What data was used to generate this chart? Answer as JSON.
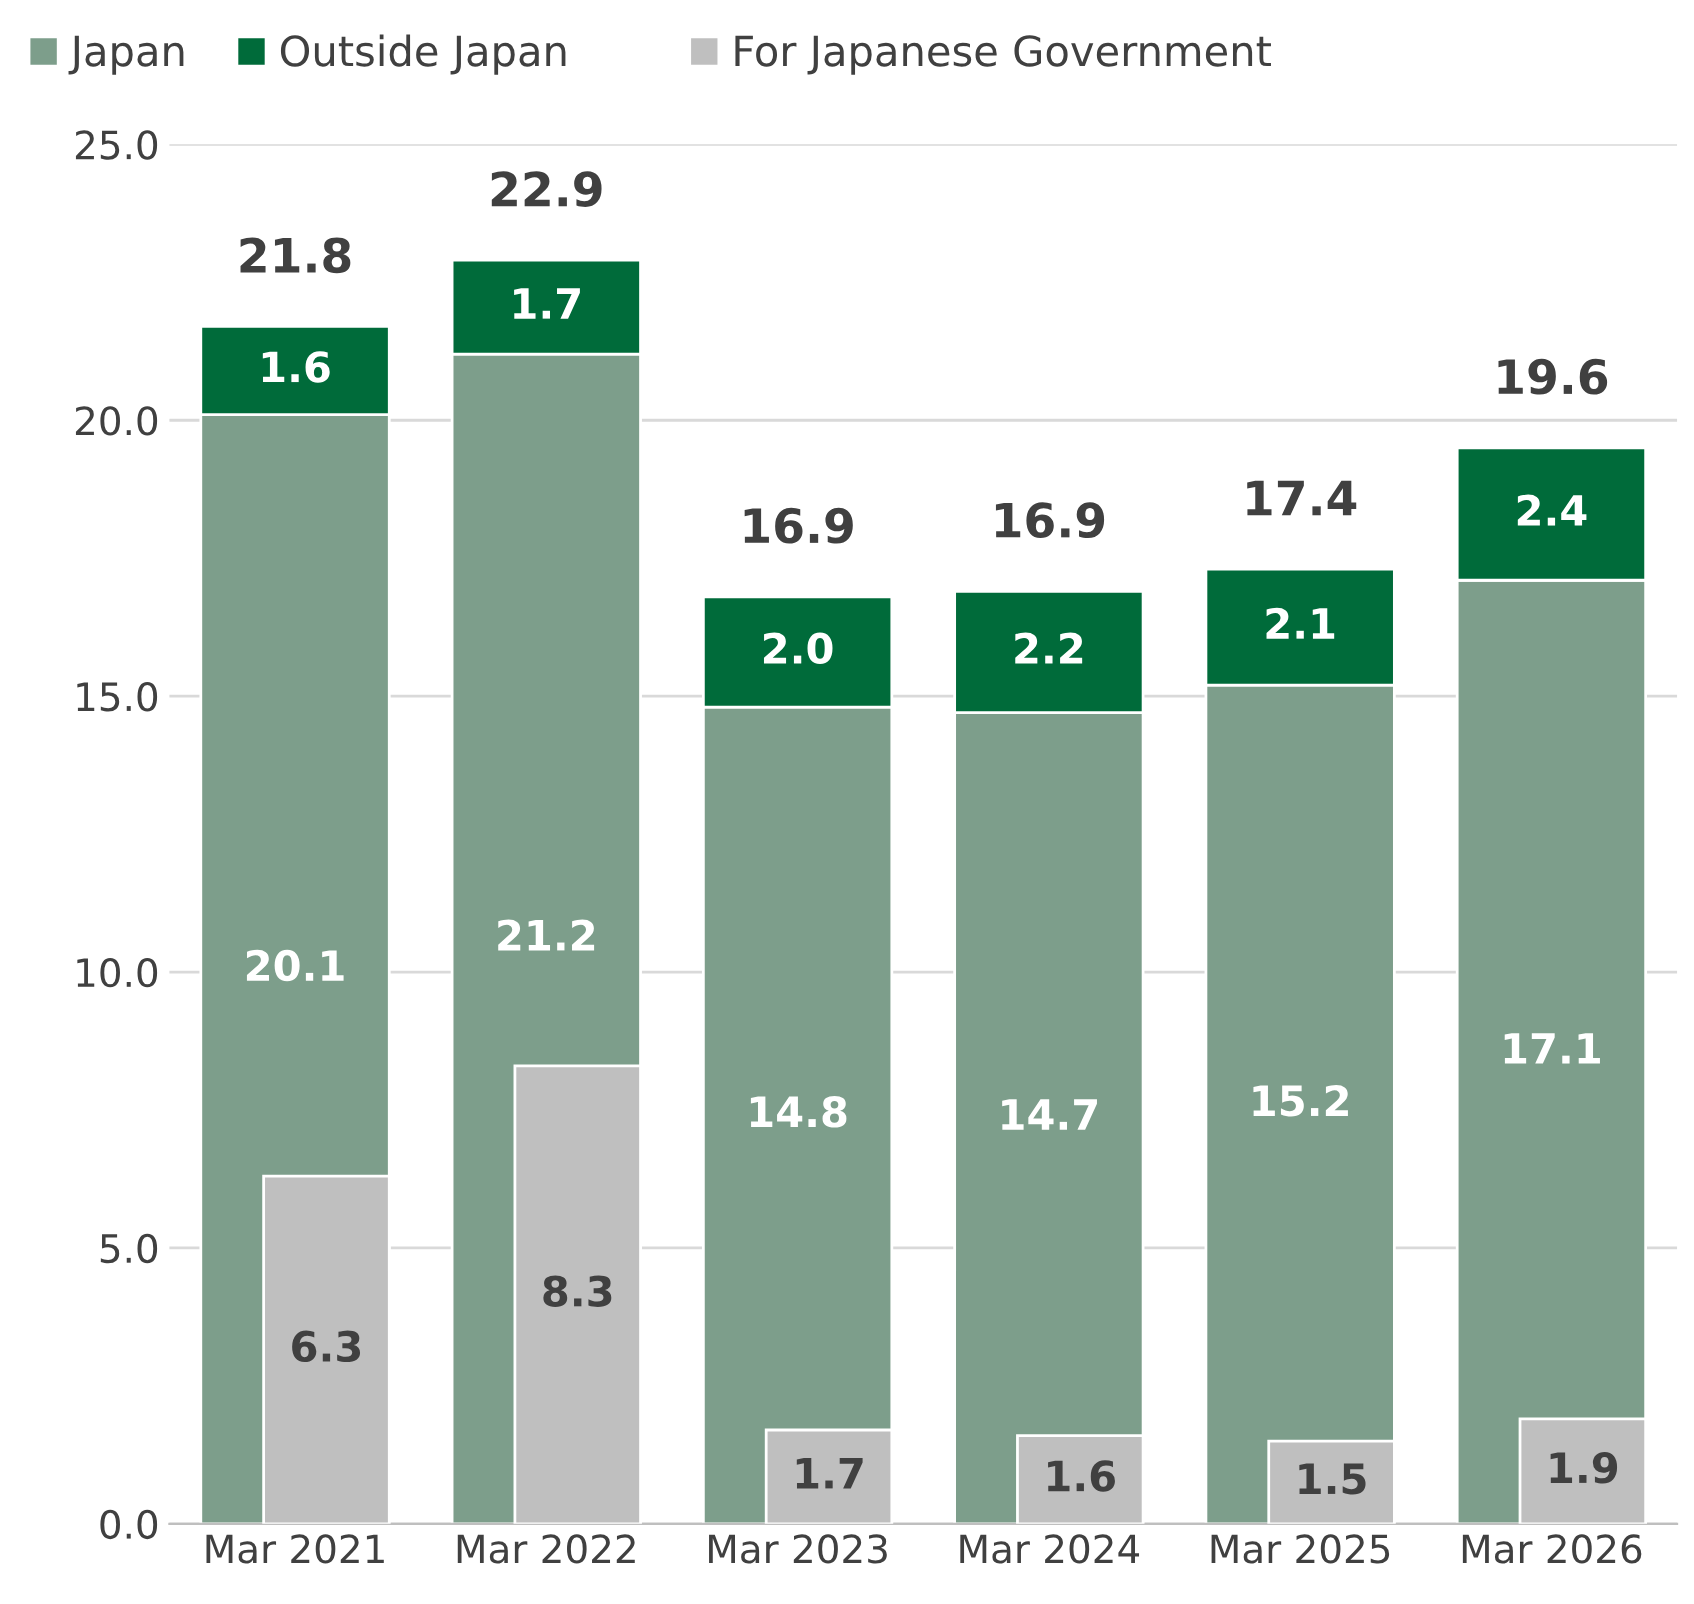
{
  "chart_data": [
    {
      "type": "bar",
      "stacked": true,
      "categories": [
        "Mar 2021",
        "Mar 2022",
        "Mar 2023",
        "Mar 2024",
        "Mar 2025",
        "Mar 2026"
      ],
      "series": [
        {
          "name": "Japan",
          "color": "#7d9e8b",
          "values": [
            20.1,
            21.2,
            14.8,
            14.7,
            15.2,
            17.1
          ],
          "value_labels": [
            "20.1",
            "21.2",
            "14.8",
            "14.7",
            "15.2",
            "17.1"
          ]
        },
        {
          "name": "Outside Japan",
          "color": "#006b3a",
          "values": [
            1.6,
            1.7,
            2.0,
            2.2,
            2.1,
            2.4
          ],
          "value_labels": [
            "1.6",
            "1.7",
            "2.0",
            "2.2",
            "2.1",
            "2.4"
          ]
        }
      ],
      "totals": [
        "21.8",
        "22.9",
        "16.9",
        "16.9",
        "17.4",
        "19.6"
      ],
      "ylim": [
        0,
        25
      ],
      "yticks": [
        {
          "value": 0,
          "label": "0.0"
        },
        {
          "value": 5,
          "label": "5.0"
        },
        {
          "value": 10,
          "label": "10.0"
        },
        {
          "value": 15,
          "label": "15.0"
        },
        {
          "value": 20,
          "label": "20.0"
        },
        {
          "value": 25,
          "label": "25.0"
        }
      ],
      "grid": "y",
      "legend": "top left"
    },
    {
      "type": "bar",
      "categories": [
        null,
        null,
        null,
        null,
        null,
        null
      ],
      "series": [
        {
          "name": "For Japanese Government",
          "color": "#bfbfbf",
          "values": [
            6.3,
            8.3,
            1.7,
            1.6,
            1.5,
            1.9
          ],
          "value_labels": [
            "6.3",
            "8.3",
            "1.7",
            "1.6",
            "1.5",
            "1.9"
          ]
        }
      ],
      "ylim": [
        0,
        25
      ],
      "tick_labels": false,
      "legend": "top"
    }
  ]
}
